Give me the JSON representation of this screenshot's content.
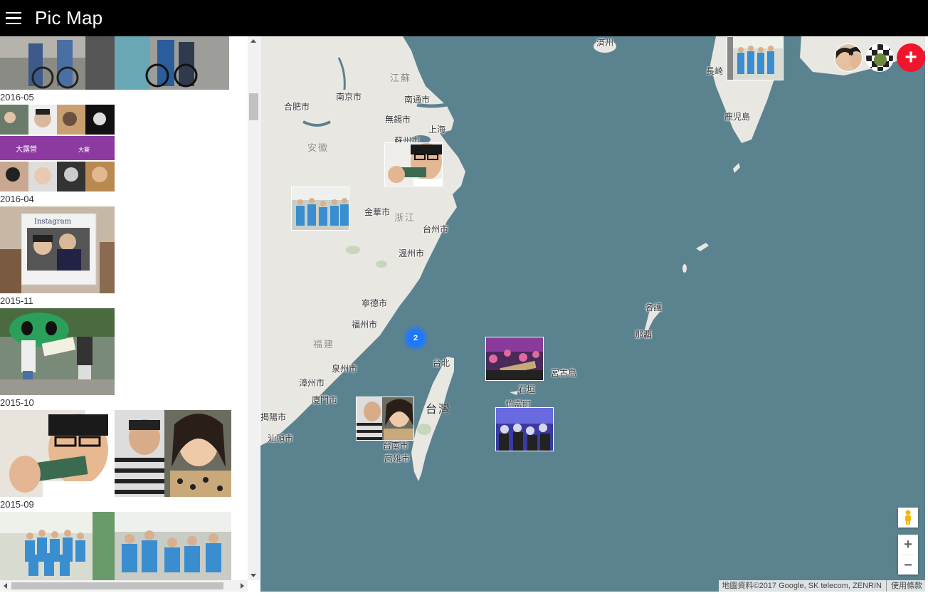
{
  "app": {
    "title": "Pic Map",
    "menu_icon": "hamburger-icon"
  },
  "sidebar": {
    "groups": [
      {
        "label": "",
        "photos": 2
      },
      {
        "label": "2016-05",
        "photos": 1
      },
      {
        "label": "2016-04",
        "photos": 1
      },
      {
        "label": "2015-11",
        "photos": 1
      },
      {
        "label": "2015-10",
        "photos": 2
      },
      {
        "label": "2015-09",
        "photos": 2
      }
    ]
  },
  "map": {
    "cities": [
      {
        "name": "合肥市"
      },
      {
        "name": "南京市"
      },
      {
        "name": "南通市"
      },
      {
        "name": "無錫市"
      },
      {
        "name": "上海"
      },
      {
        "name": "金華市"
      },
      {
        "name": "台州市"
      },
      {
        "name": "溫州市"
      },
      {
        "name": "寧德市"
      },
      {
        "name": "福州市"
      },
      {
        "name": "泉州市"
      },
      {
        "name": "漳州市"
      },
      {
        "name": "廈門市"
      },
      {
        "name": "揭陽市"
      },
      {
        "name": "汕頭市"
      },
      {
        "name": "台北"
      },
      {
        "name": "台南市"
      },
      {
        "name": "高雄市"
      },
      {
        "name": "長崎"
      },
      {
        "name": "鹿児島"
      },
      {
        "name": "名護"
      },
      {
        "name": "那覇"
      },
      {
        "name": "宮古島"
      },
      {
        "name": "石垣"
      },
      {
        "name": "竹富町"
      },
      {
        "name": "済州"
      },
      {
        "name": "蘇州市"
      }
    ],
    "regions": [
      {
        "name": "江蘇"
      },
      {
        "name": "安徽"
      },
      {
        "name": "浙江"
      },
      {
        "name": "福建"
      },
      {
        "name": "台灣"
      }
    ],
    "cluster_count": "2",
    "attribution": "地圖資料©2017 Google, SK telecom, ZENRIN",
    "terms_link": "使用條款",
    "zoom_in": "+",
    "zoom_out": "−",
    "add_button": "+",
    "colors": {
      "water": "#5b828f",
      "land": "#e9e7e2",
      "accent": "#f0142d",
      "cluster": "#1e78ff"
    }
  }
}
